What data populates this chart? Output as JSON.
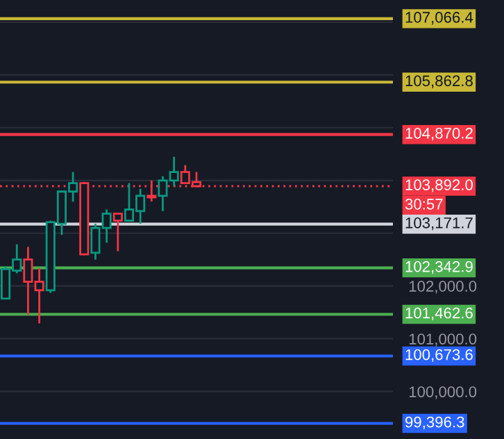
{
  "chart_data": {
    "type": "candlestick",
    "categories": [
      null,
      null,
      null,
      null,
      null,
      null,
      null,
      null,
      null,
      null,
      null,
      null,
      null,
      null,
      null,
      null,
      null,
      null,
      null,
      null,
      null,
      null,
      null,
      null,
      null,
      null,
      null,
      null,
      null,
      null,
      null,
      null,
      null,
      null,
      null
    ],
    "ohlc": [
      [
        101760,
        102370,
        101760,
        102320
      ],
      [
        102290,
        102790,
        102240,
        102500
      ],
      [
        102500,
        102740,
        101450,
        102080
      ],
      [
        102080,
        102340,
        101290,
        101920
      ],
      [
        101920,
        103240,
        101870,
        103210
      ],
      [
        103180,
        103790,
        102970,
        103790
      ],
      [
        103790,
        104160,
        103600,
        103950
      ],
      [
        103950,
        103970,
        102580,
        102600
      ],
      [
        102630,
        103180,
        102500,
        103100
      ],
      [
        103100,
        103450,
        102820,
        103370
      ],
      [
        103370,
        103370,
        102660,
        103240
      ],
      [
        103240,
        103950,
        103240,
        103450
      ],
      [
        103420,
        103840,
        103180,
        103710
      ],
      [
        103710,
        104000,
        103600,
        103680
      ],
      [
        103710,
        104080,
        103420,
        104000
      ],
      [
        104000,
        104450,
        103890,
        104160
      ],
      [
        104160,
        104290,
        103950,
        103950
      ],
      [
        103970,
        104160,
        103890,
        103892
      ],
      null,
      null,
      null,
      null,
      null,
      null,
      null,
      null,
      null,
      null,
      null,
      null,
      null,
      null,
      null,
      null,
      null
    ],
    "colors": [
      "#089981",
      "#089981",
      "#f23645",
      "#f23645",
      "#089981",
      "#089981",
      "#089981",
      "#f23645",
      "#089981",
      "#089981",
      "#f23645",
      "#089981",
      "#089981",
      "#f23645",
      "#089981",
      "#089981",
      "#f23645",
      "#f23645",
      null,
      null,
      null,
      null,
      null,
      null,
      null,
      null,
      null,
      null,
      null,
      null,
      null,
      null,
      null,
      null,
      null
    ],
    "ylim": [
      99100,
      107420
    ],
    "yticks": [
      {
        "value": 100000,
        "label": "100,000.0"
      },
      {
        "value": 101000,
        "label": "101,000.0"
      },
      {
        "value": 102000,
        "label": "102,000.0"
      },
      {
        "value": 103000,
        "label": null
      },
      {
        "value": 104000,
        "label": null
      },
      {
        "value": 105000,
        "label": null
      },
      {
        "value": 106000,
        "label": null
      },
      {
        "value": 107000,
        "label": null
      }
    ],
    "grid": "y",
    "ref_lines": [
      {
        "axis": "y",
        "value": 107066.4,
        "label": "107,066.4",
        "color": "#c9b937"
      },
      {
        "axis": "y",
        "value": 105862.8,
        "label": "105,862.8",
        "color": "#c9b937"
      },
      {
        "axis": "y",
        "value": 104870.2,
        "label": "104,870.2",
        "color": "#f23645"
      },
      {
        "axis": "y",
        "value": 103892.0,
        "label": "103,892.0",
        "color": "#f23645",
        "line_style": "dotted"
      },
      {
        "axis": "y",
        "value": 103171.7,
        "label": "103,171.7",
        "color": "#d1d4dc"
      },
      {
        "axis": "y",
        "value": 102342.9,
        "label": "102,342.9",
        "color": "#4caf50"
      },
      {
        "axis": "y",
        "value": 101462.6,
        "label": "101,462.6",
        "color": "#4caf50"
      },
      {
        "axis": "y",
        "value": 100673.6,
        "label": "100,673.6",
        "color": "#2962ff"
      },
      {
        "axis": "y",
        "value": 99396.3,
        "label": "99,396.3",
        "color": "#2962ff"
      }
    ],
    "annotations": [
      "30:57"
    ]
  }
}
